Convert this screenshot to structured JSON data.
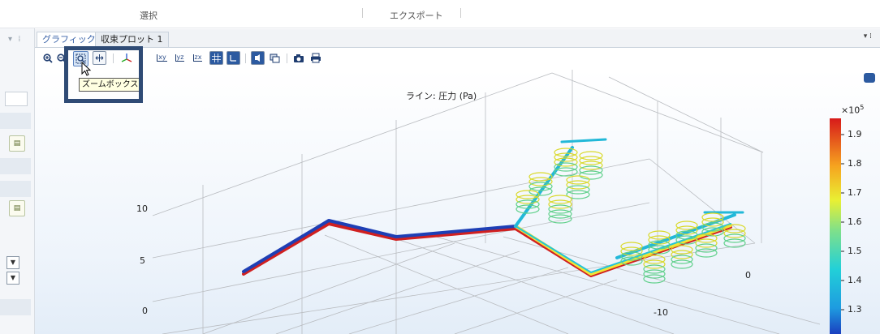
{
  "ribbon": {
    "select_label": "選択",
    "export_label": "エクスポート"
  },
  "tabs": [
    {
      "label": "グラフィックス"
    },
    {
      "label": "収束プロット 1"
    }
  ],
  "tooltip": {
    "text": "ズームボックス"
  },
  "plot": {
    "title": "ライン: 圧力 (Pa)",
    "z_ticks": [
      "10",
      "5",
      "0"
    ],
    "x_ticks": [
      "0",
      "-10"
    ],
    "colorbar": {
      "exponent": "×10",
      "exponent_power": "5",
      "labels": [
        "1.9",
        "1.8",
        "1.7",
        "1.6",
        "1.5",
        "1.4",
        "1.3"
      ]
    }
  },
  "colors": {
    "accent": "#3a63a8",
    "highlight_box": "#2f4b75"
  },
  "icons": [
    "zoom-in-icon",
    "zoom-out-icon",
    "zoom-box-icon",
    "zoom-extents-icon",
    "axis-orientation-icon",
    "xy-plane-icon",
    "yz-plane-icon",
    "zx-plane-icon",
    "grid-icon",
    "show-axes-icon",
    "scene-light-icon",
    "transparency-icon",
    "camera-icon",
    "print-icon"
  ]
}
